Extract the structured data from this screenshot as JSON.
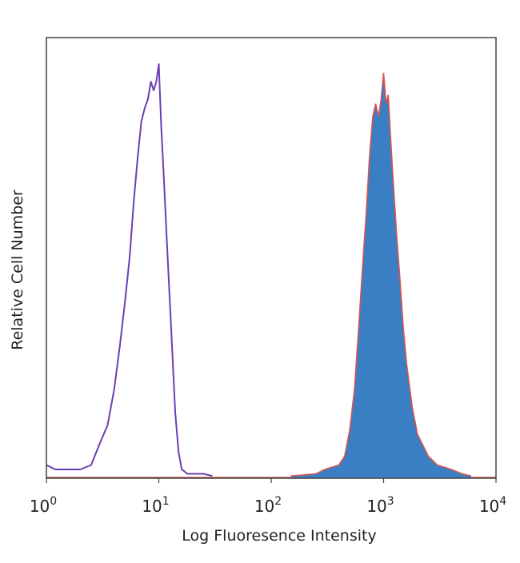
{
  "chart_data": {
    "type": "area",
    "title": "",
    "xlabel": "Log Fluoresence Intensity",
    "ylabel": "Relative Cell Number",
    "x_scale": "log",
    "xlim": [
      1,
      10000
    ],
    "ylim": [
      0,
      1.0
    ],
    "grid": false,
    "x_ticks": [
      {
        "base": "10",
        "exp": "0",
        "value": 1
      },
      {
        "base": "10",
        "exp": "1",
        "value": 10
      },
      {
        "base": "10",
        "exp": "2",
        "value": 100
      },
      {
        "base": "10",
        "exp": "3",
        "value": 1000
      },
      {
        "base": "10",
        "exp": "4",
        "value": 10000
      }
    ],
    "series": [
      {
        "style": "outline",
        "color": "#6a3fb0",
        "x": [
          1,
          1.2,
          1.5,
          2,
          2.5,
          3,
          3.5,
          4,
          4.5,
          5,
          5.5,
          6,
          6.5,
          7,
          7.5,
          8,
          8.5,
          9,
          9.5,
          10,
          10.5,
          11,
          12,
          13,
          14,
          15,
          16,
          18,
          20,
          25,
          30
        ],
        "y": [
          0.03,
          0.02,
          0.02,
          0.02,
          0.03,
          0.08,
          0.12,
          0.2,
          0.3,
          0.4,
          0.5,
          0.63,
          0.73,
          0.81,
          0.84,
          0.86,
          0.9,
          0.88,
          0.9,
          0.94,
          0.8,
          0.7,
          0.5,
          0.32,
          0.15,
          0.06,
          0.02,
          0.01,
          0.01,
          0.01,
          0.005
        ]
      },
      {
        "style": "filled",
        "color": "#3a7fc4",
        "outline_color": "#d9534f",
        "x": [
          150,
          250,
          300,
          400,
          450,
          500,
          550,
          600,
          650,
          700,
          750,
          800,
          850,
          900,
          950,
          1000,
          1050,
          1100,
          1150,
          1200,
          1300,
          1400,
          1500,
          1600,
          1800,
          2000,
          2500,
          3000,
          4000,
          5000,
          6000
        ],
        "y": [
          0.005,
          0.01,
          0.02,
          0.03,
          0.05,
          0.11,
          0.2,
          0.34,
          0.48,
          0.6,
          0.73,
          0.82,
          0.85,
          0.82,
          0.86,
          0.92,
          0.85,
          0.87,
          0.78,
          0.7,
          0.56,
          0.45,
          0.34,
          0.26,
          0.16,
          0.1,
          0.05,
          0.03,
          0.02,
          0.01,
          0.005
        ]
      }
    ]
  }
}
